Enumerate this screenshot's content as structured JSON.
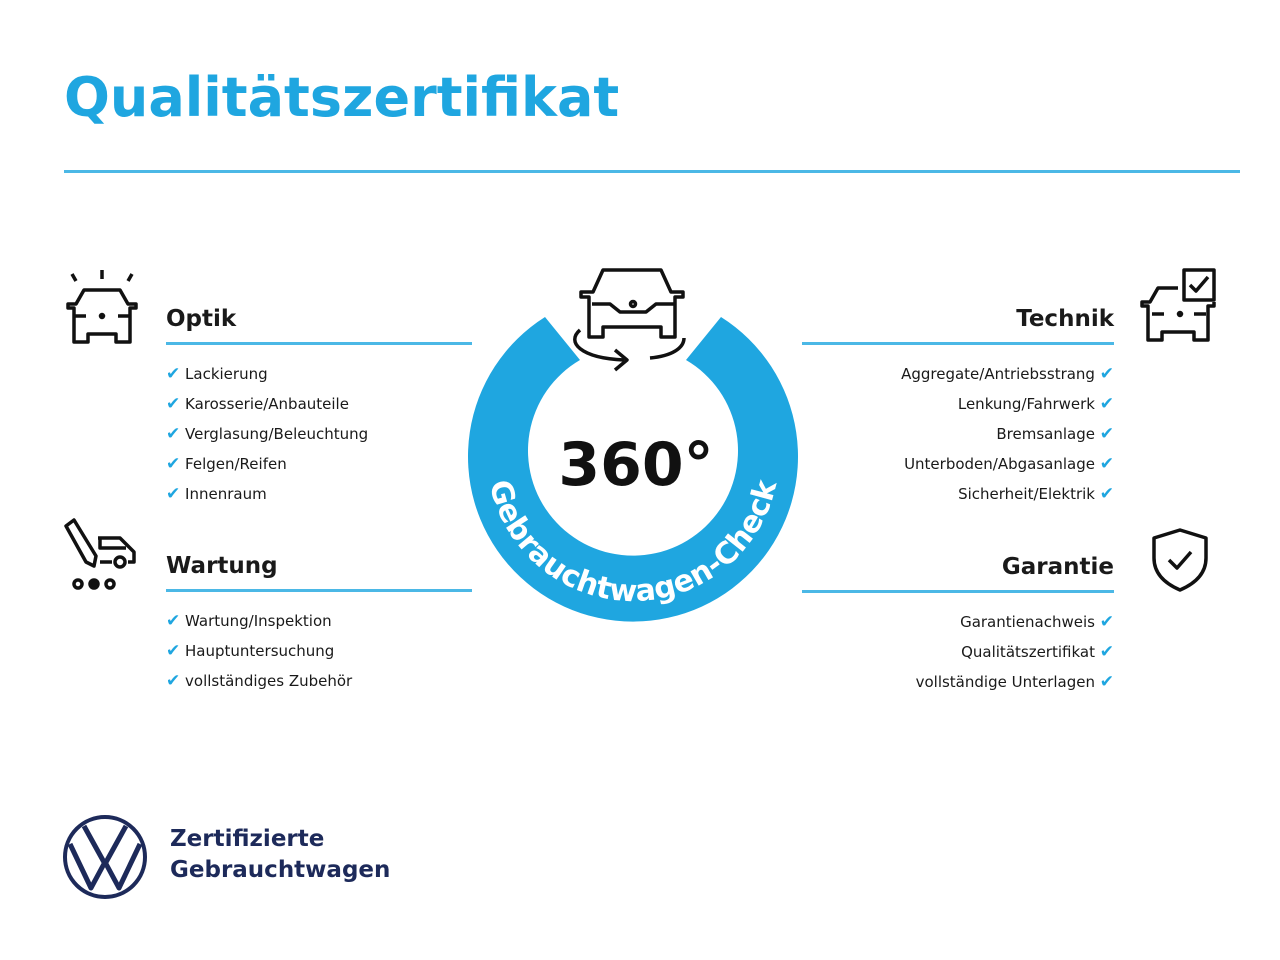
{
  "title": "Qualitätszertifikat",
  "badge": {
    "number": "360°",
    "ring_text": "Gebrauchtwagen-Check",
    "color": "#1fa6e0"
  },
  "sections": {
    "optik": {
      "heading": "Optik",
      "items": [
        "Lackierung",
        "Karosserie/Anbauteile",
        "Verglasung/Beleuchtung",
        "Felgen/Reifen",
        "Innenraum"
      ],
      "icon": "car-lights-icon"
    },
    "wartung": {
      "heading": "Wartung",
      "items": [
        "Wartung/Inspektion",
        "Hauptuntersuchung",
        "vollständiges Zubehör"
      ],
      "icon": "car-service-icon"
    },
    "technik": {
      "heading": "Technik",
      "items": [
        "Aggregate/Antriebsstrang",
        "Lenkung/Fahrwerk",
        "Bremsanlage",
        "Unterboden/Abgasanlage",
        "Sicherheit/Elektrik"
      ],
      "icon": "car-checkbox-icon"
    },
    "garantie": {
      "heading": "Garantie",
      "items": [
        "Garantienachweis",
        "Qualitätszertifikat",
        "vollständige Unterlagen"
      ],
      "icon": "shield-check-icon"
    }
  },
  "check_mark": "✔",
  "footer": {
    "line1": "Zertifizierte",
    "line2": "Gebrauchtwagen",
    "logo": "VW"
  },
  "accent_color": "#1fa6e0",
  "brand_color": "#1d2a5a"
}
